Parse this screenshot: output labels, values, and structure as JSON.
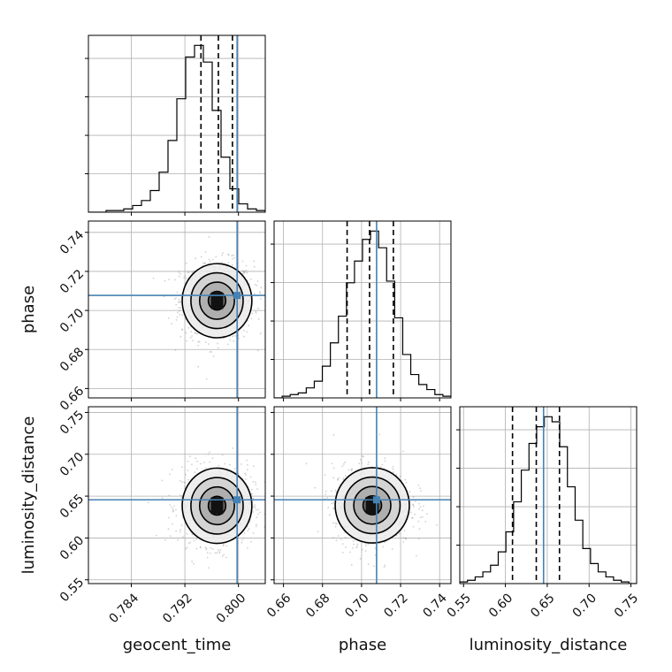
{
  "chart_data": {
    "type": "corner",
    "grid": true,
    "parameters": [
      "geocent_time",
      "phase",
      "luminosity_distance"
    ],
    "axis_labels": {
      "x": [
        "geocent_time",
        "phase",
        "luminosity_distance"
      ],
      "y": [
        "",
        "phase",
        "luminosity_distance"
      ]
    },
    "ranges": {
      "geocent_time": [
        0.7776,
        0.804
      ],
      "phase": [
        0.6552,
        0.7458
      ],
      "luminosity_distance": [
        0.5455,
        0.7568
      ]
    },
    "ticks": {
      "geocent_time": [
        "0.784",
        "0.792",
        "0.800"
      ],
      "phase": [
        "0.66",
        "0.68",
        "0.70",
        "0.72",
        "0.74"
      ],
      "luminosity_distance": [
        "0.55",
        "0.60",
        "0.65",
        "0.70",
        "0.75"
      ]
    },
    "truths": {
      "geocent_time": 0.7998,
      "phase": 0.7077,
      "luminosity_distance": 0.6456
    },
    "quantiles": {
      "geocent_time": [
        0.7944,
        0.797,
        0.7991
      ],
      "phase": [
        0.6926,
        0.7041,
        0.7163
      ],
      "luminosity_distance": [
        0.6085,
        0.6369,
        0.6646
      ]
    },
    "histograms": {
      "geocent_time": {
        "range": [
          0.7776,
          0.804
        ],
        "counts": [
          0,
          0,
          1,
          1,
          2,
          4,
          7,
          13,
          24,
          43,
          68,
          93,
          100,
          90,
          61,
          33,
          14,
          5,
          2,
          1
        ]
      },
      "phase": {
        "range": [
          0.6552,
          0.7458
        ],
        "counts": [
          0,
          1,
          2,
          3,
          6,
          10,
          19,
          33,
          49,
          69,
          82,
          95,
          100,
          90,
          70,
          48,
          26,
          14,
          8,
          5,
          2,
          1
        ]
      },
      "luminosity_distance": {
        "range": [
          0.5455,
          0.7568
        ],
        "counts": [
          1,
          2,
          4,
          7,
          11,
          19,
          31,
          49,
          68,
          84,
          94,
          100,
          97,
          82,
          58,
          38,
          21,
          12,
          7,
          4,
          2,
          1,
          0
        ]
      }
    },
    "contours_2d": [
      {
        "x": "geocent_time",
        "y": "phase",
        "center": [
          0.7968,
          0.705
        ],
        "sigma": [
          0.0026,
          0.0095
        ],
        "rho": 0.0
      },
      {
        "x": "geocent_time",
        "y": "luminosity_distance",
        "center": [
          0.7968,
          0.6385
        ],
        "sigma": [
          0.0026,
          0.0225
        ],
        "rho": 0.0
      },
      {
        "x": "phase",
        "y": "luminosity_distance",
        "center": [
          0.7055,
          0.639
        ],
        "sigma": [
          0.0095,
          0.0225
        ],
        "rho": 0.0
      }
    ],
    "colors": {
      "truth": "#4682b4",
      "hist": "#000000",
      "grid": "#b0b0b0",
      "density": "#000000"
    }
  }
}
